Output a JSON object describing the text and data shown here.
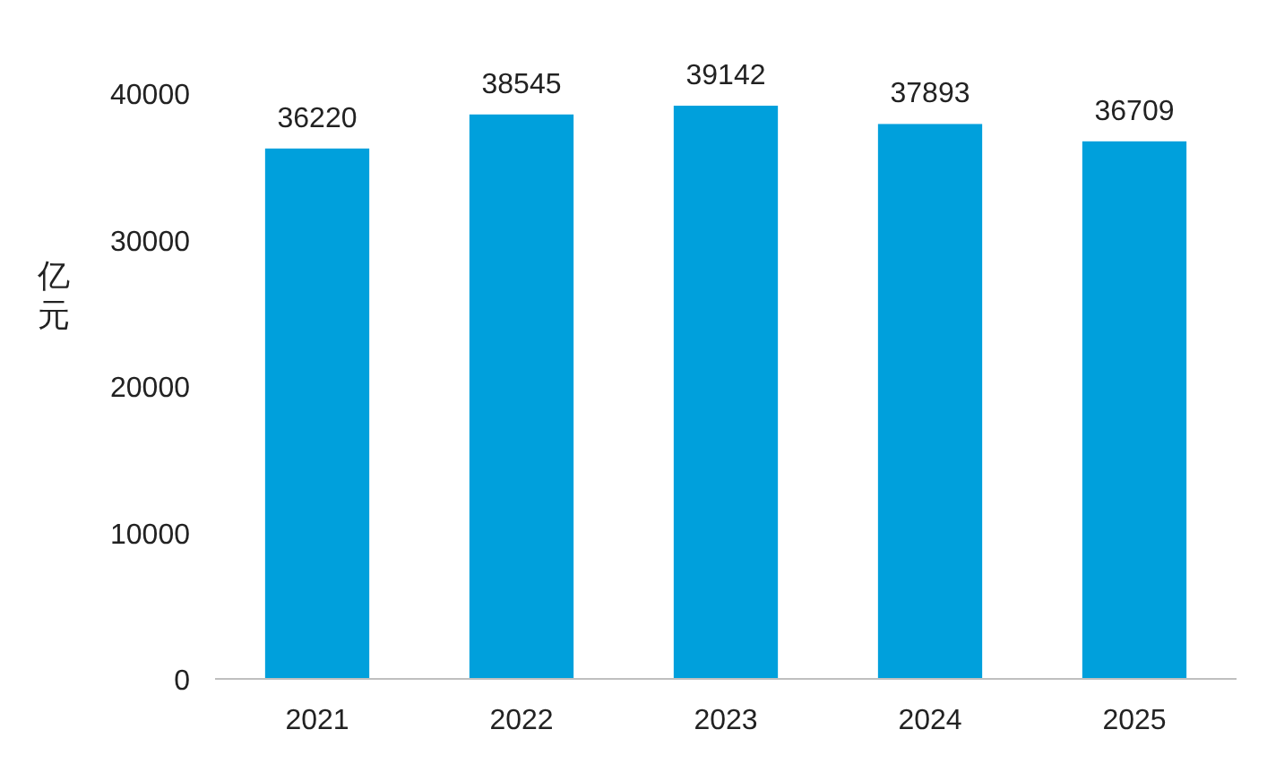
{
  "chart_data": {
    "type": "bar",
    "ylabel": "亿元",
    "categories": [
      "2021",
      "2022",
      "2023",
      "2024",
      "2025"
    ],
    "values": [
      36220,
      38545,
      39142,
      37893,
      36709
    ],
    "color": "#00a0dc",
    "ylim": [
      0,
      40000
    ],
    "yticks": [
      0,
      10000,
      20000,
      30000,
      40000
    ],
    "grid": false,
    "data_labels": true
  }
}
